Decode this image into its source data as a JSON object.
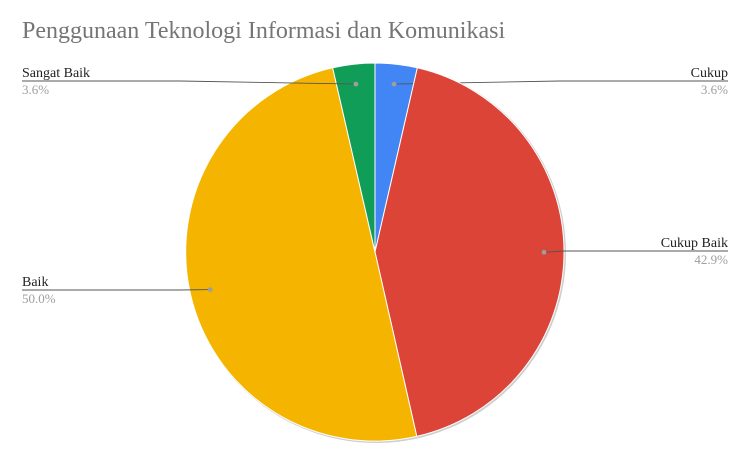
{
  "chart_data": {
    "type": "pie",
    "title": "Penggunaan Teknologi Informasi dan Komunikasi",
    "legend": "labels",
    "slices": [
      {
        "label": "Cukup",
        "value": 3.6,
        "display": "3.6%",
        "color": "#4285F4"
      },
      {
        "label": "Cukup Baik",
        "value": 42.9,
        "display": "42.9%",
        "color": "#DB4437"
      },
      {
        "label": "Baik",
        "value": 50.0,
        "display": "50.0%",
        "color": "#F4B400"
      },
      {
        "label": "Sangat Baik",
        "value": 3.6,
        "display": "3.6%",
        "color": "#0F9D58"
      }
    ]
  }
}
